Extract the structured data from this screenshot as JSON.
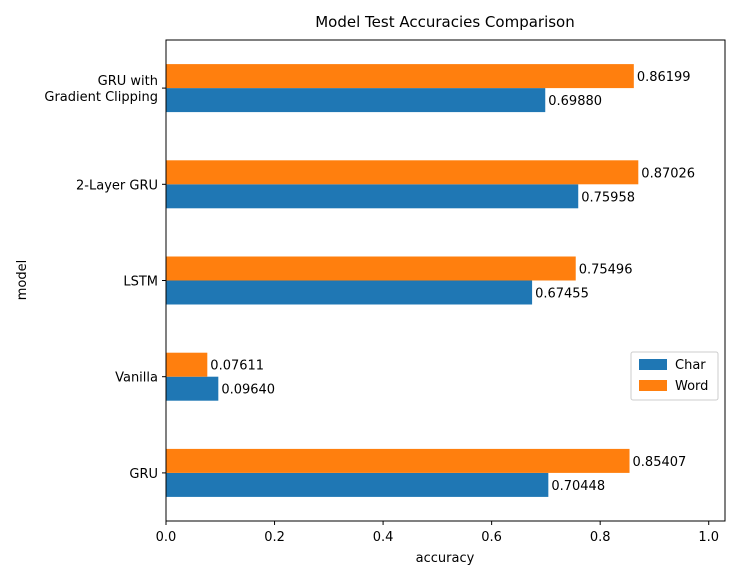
{
  "chart_data": {
    "type": "bar",
    "orientation": "horizontal",
    "title": "Model Test Accuracies Comparison",
    "xlabel": "accuracy",
    "ylabel": "model",
    "xlim": [
      0,
      1.03
    ],
    "xticks": [
      "0.0",
      "0.2",
      "0.4",
      "0.6",
      "0.8",
      "1.0"
    ],
    "categories": [
      "GRU",
      "Vanilla",
      "LSTM",
      "2-Layer GRU",
      "GRU with\nGradient Clipping"
    ],
    "series": [
      {
        "name": "Char",
        "color": "#1f77b4",
        "values": [
          0.70448,
          0.0964,
          0.67455,
          0.75958,
          0.6988
        ],
        "labels": [
          "0.70448",
          "0.09640",
          "0.67455",
          "0.75958",
          "0.69880"
        ]
      },
      {
        "name": "Word",
        "color": "#ff7f0e",
        "values": [
          0.85407,
          0.07611,
          0.75496,
          0.87026,
          0.86199
        ],
        "labels": [
          "0.85407",
          "0.07611",
          "0.75496",
          "0.87026",
          "0.86199"
        ]
      }
    ],
    "legend_position": "center-right",
    "grid": false
  }
}
